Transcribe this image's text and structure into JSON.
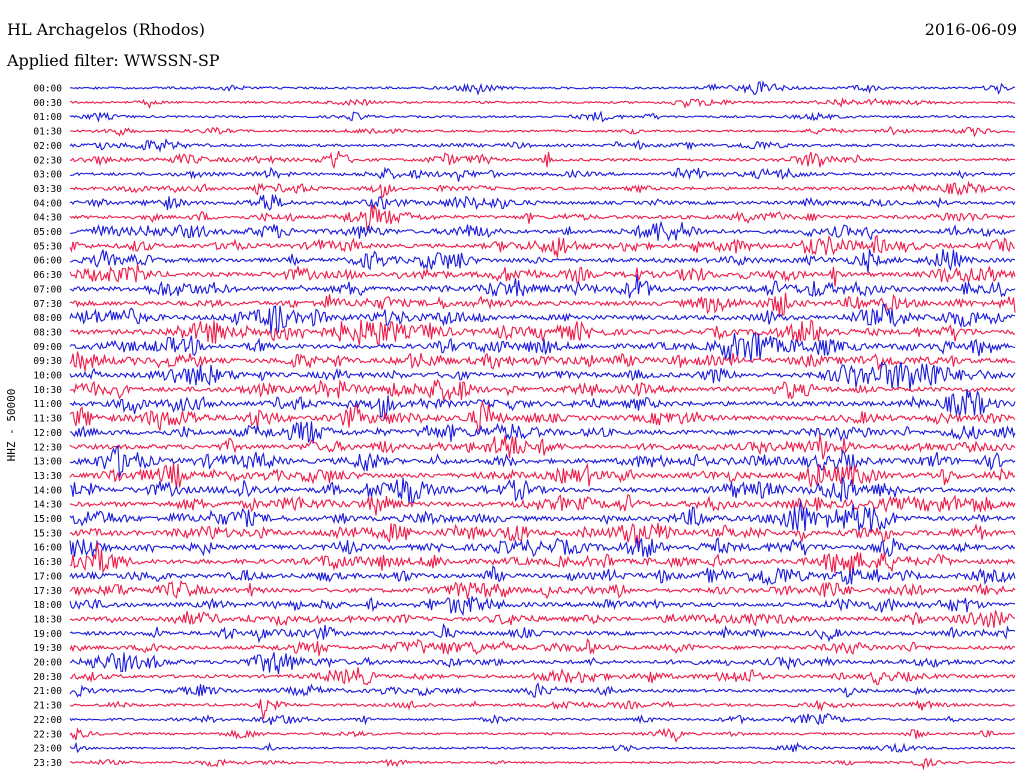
{
  "header": {
    "station": "HL Archagelos (Rhodos)",
    "date": "2016-06-09",
    "filter": "Applied filter: WWSSN-SP"
  },
  "chart_data": {
    "type": "line",
    "title": "HL Archagelos (Rhodos)",
    "ylabel": "HHZ - 50000",
    "xlabel": "",
    "grid": false,
    "row_labels": [
      "00:00",
      "00:30",
      "01:00",
      "01:30",
      "02:00",
      "02:30",
      "03:00",
      "03:30",
      "04:00",
      "04:30",
      "05:00",
      "05:30",
      "06:00",
      "06:30",
      "07:00",
      "07:30",
      "08:00",
      "08:30",
      "09:00",
      "09:30",
      "10:00",
      "10:30",
      "11:00",
      "11:30",
      "12:00",
      "12:30",
      "13:00",
      "13:30",
      "14:00",
      "14:30",
      "15:00",
      "15:30",
      "16:00",
      "16:30",
      "17:00",
      "17:30",
      "18:00",
      "18:30",
      "19:00",
      "19:30",
      "20:00",
      "20:30",
      "21:00",
      "21:30",
      "22:00",
      "22:30",
      "23:00",
      "23:30"
    ],
    "series_colors": [
      "#1a1adc",
      "#ee1b48"
    ],
    "noise_level": [
      0.3,
      0.3,
      0.25,
      0.25,
      0.4,
      0.45,
      0.5,
      0.55,
      0.6,
      0.65,
      0.75,
      0.8,
      0.85,
      0.9,
      0.9,
      0.95,
      1.0,
      1.0,
      1.0,
      1.0,
      1.0,
      1.0,
      1.0,
      1.0,
      1.0,
      1.0,
      1.0,
      1.0,
      1.0,
      1.0,
      1.0,
      1.0,
      1.0,
      1.0,
      0.9,
      0.85,
      0.8,
      0.8,
      0.75,
      0.7,
      0.7,
      0.6,
      0.5,
      0.4,
      0.35,
      0.3,
      0.25,
      0.2
    ]
  }
}
